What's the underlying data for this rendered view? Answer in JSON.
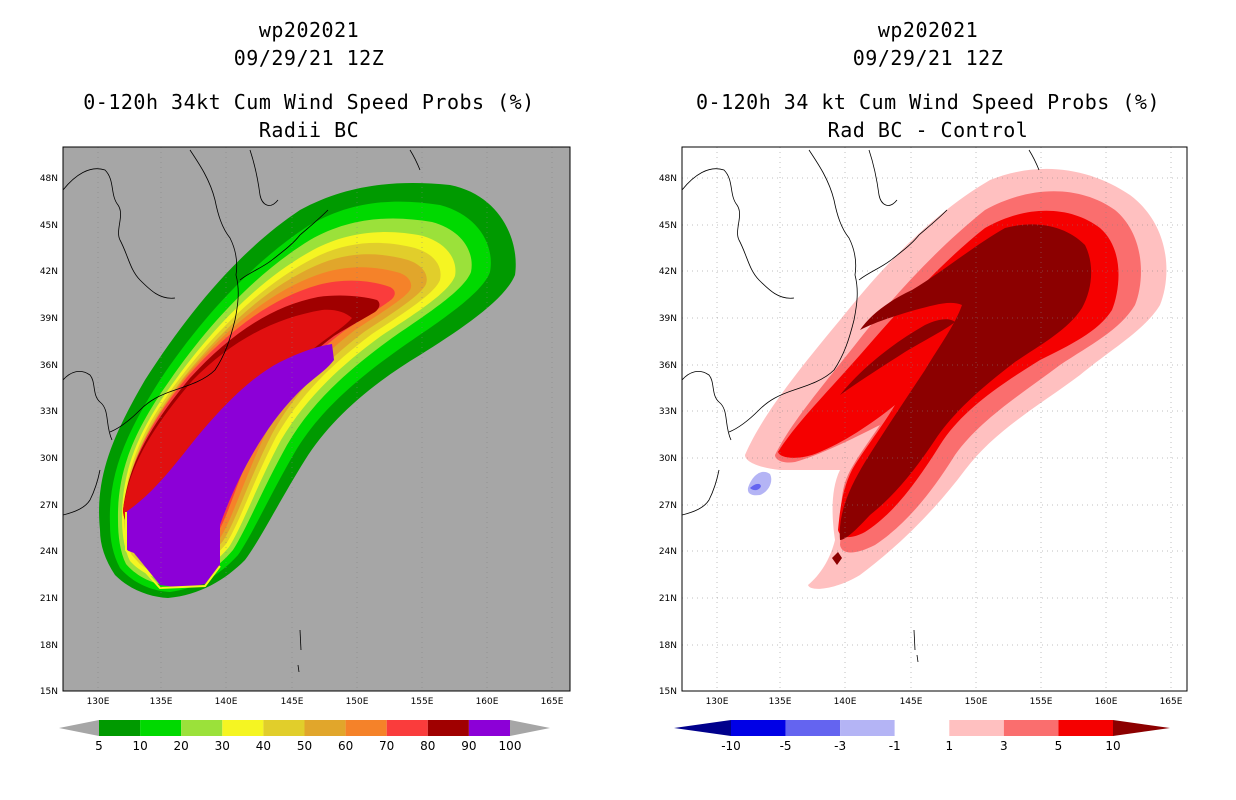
{
  "chart_data": [
    {
      "type": "filled-contour-map",
      "storm_id": "wp202021",
      "datetime": "09/29/21 12Z",
      "title": "0-120h 34kt Cum Wind Speed Probs (%)",
      "subtitle": "Radii BC",
      "x_tick_labels": [
        "130E",
        "135E",
        "140E",
        "145E",
        "150E",
        "155E",
        "160E",
        "165E"
      ],
      "y_tick_labels": [
        "48N",
        "45N",
        "42N",
        "39N",
        "36N",
        "33N",
        "30N",
        "27N",
        "24N",
        "21N",
        "18N",
        "15N"
      ],
      "colorbar": {
        "labels": [
          "5",
          "10",
          "20",
          "30",
          "40",
          "50",
          "60",
          "70",
          "80",
          "90",
          "100"
        ],
        "colors": [
          "#a6a6a6",
          "#009a00",
          "#00d900",
          "#9be13a",
          "#f5f522",
          "#e1ce2b",
          "#e1a62b",
          "#f58229",
          "#fa3c3c",
          "#a00000",
          "#8c00d7",
          "#a6a6a6"
        ]
      }
    },
    {
      "type": "filled-contour-map",
      "storm_id": "wp202021",
      "datetime": "09/29/21 12Z",
      "title": "0-120h 34 kt Cum Wind Speed Probs (%)",
      "subtitle": "Rad BC - Control",
      "x_tick_labels": [
        "130E",
        "135E",
        "140E",
        "145E",
        "150E",
        "155E",
        "160E",
        "165E"
      ],
      "y_tick_labels": [
        "48N",
        "45N",
        "42N",
        "39N",
        "36N",
        "33N",
        "30N",
        "27N",
        "24N",
        "21N",
        "18N",
        "15N"
      ],
      "colorbar": {
        "labels": [
          "-10",
          "-5",
          "-3",
          "-1",
          "1",
          "3",
          "5",
          "10"
        ],
        "colors": [
          "#00008c",
          "#0000e6",
          "#6464f0",
          "#b4b4f5",
          "#ffffff",
          "#ffc0c0",
          "#fa6e6e",
          "#f50000",
          "#8c0000"
        ]
      }
    }
  ]
}
